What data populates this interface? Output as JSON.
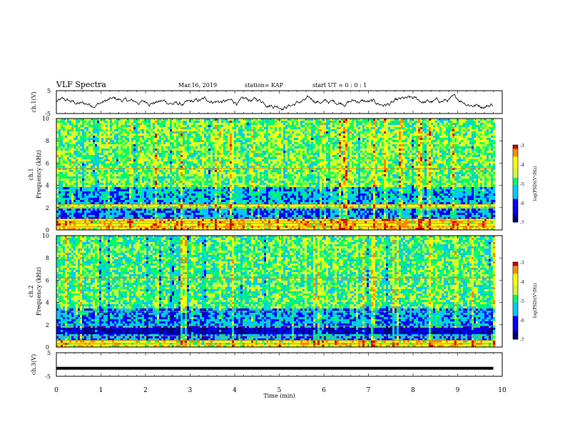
{
  "header": {
    "title": "VLF Spectra",
    "date": "Mar.16, 2019",
    "station": "station= KAP",
    "start": "start  UT =  0 : 0 : 1"
  },
  "labels": {
    "ch1_timeseries_y": "ch.1(V)",
    "ch2_timeseries_y": "ch.3(V)",
    "spec1_y_top": "ch.1",
    "spec1_y_bottom": "Frequency (kHz)",
    "spec2_y_top": "ch.2",
    "spec2_y_bottom": "Frequency (kHz)",
    "xlabel": "Time (min)",
    "colorbar_label": "log(PSD)(V²/Hz)"
  },
  "chart_data": [
    {
      "type": "line",
      "name_key": "ch.1(V)",
      "ylim": [
        -5,
        5
      ],
      "yticks": [
        "5",
        "-5"
      ],
      "xlim": [
        0,
        10
      ],
      "description_values": {
        "baseline_V": 0,
        "amplitude_V": 2
      }
    },
    {
      "type": "heatmap",
      "ylabel": "Frequency (kHz)",
      "channel": "ch.1",
      "ylim": [
        0,
        10
      ],
      "yticks": [
        "0",
        "2",
        "4",
        "6",
        "8",
        "10"
      ],
      "xlim": [
        0,
        9.8
      ],
      "colorscale": {
        "min": -7,
        "max": -3,
        "ticks": [
          "-3",
          "-4",
          "-5",
          "-6",
          "-7"
        ]
      },
      "bands": [
        {
          "f_from": 0.0,
          "f_to": 1.0,
          "level": -3.8
        },
        {
          "f_from": 1.0,
          "f_to": 2.0,
          "level": -5.6
        },
        {
          "f_from": 2.0,
          "f_to": 2.4,
          "level": -4.2
        },
        {
          "f_from": 2.4,
          "f_to": 4.0,
          "level": -5.4
        },
        {
          "f_from": 4.0,
          "f_to": 10.0,
          "level": -4.6
        }
      ],
      "lines_khz": [
        0.3,
        0.6,
        0.8,
        1.0,
        2.0,
        2.3,
        5.5
      ]
    },
    {
      "type": "heatmap",
      "ylabel": "Frequency (kHz)",
      "channel": "ch.2",
      "ylim": [
        0,
        10
      ],
      "yticks": [
        "0",
        "2",
        "4",
        "6",
        "8",
        "10"
      ],
      "xlim": [
        0,
        9.8
      ],
      "colorscale": {
        "min": -7,
        "max": -3,
        "ticks": [
          "-3",
          "-4",
          "-5",
          "-6",
          "-7"
        ]
      },
      "bands": [
        {
          "f_from": 0.0,
          "f_to": 0.7,
          "level": -4.0
        },
        {
          "f_from": 0.7,
          "f_to": 1.2,
          "level": -5.6
        },
        {
          "f_from": 1.2,
          "f_to": 1.9,
          "level": -6.5
        },
        {
          "f_from": 1.9,
          "f_to": 3.5,
          "level": -5.6
        },
        {
          "f_from": 3.5,
          "f_to": 10.0,
          "level": -4.8
        }
      ],
      "lines_khz": [
        0.3,
        0.6,
        1.0,
        1.9,
        3.2,
        6.2
      ]
    },
    {
      "type": "line",
      "name_key": "ch.3(V)",
      "ylim": [
        -5,
        5
      ],
      "yticks": [
        "5",
        "-5"
      ],
      "xlim": [
        0,
        10
      ],
      "x": [
        0,
        9.8
      ],
      "y": [
        -1.6,
        -1.6
      ]
    }
  ],
  "xaxis": {
    "ticks": [
      "0",
      "1",
      "2",
      "3",
      "4",
      "5",
      "6",
      "7",
      "8",
      "9",
      "10"
    ]
  },
  "colors": {
    "cmap": [
      "#00007f",
      "#0000ff",
      "#00c8ff",
      "#00ff66",
      "#ccff33",
      "#ffff00",
      "#ff8c00",
      "#cc0000",
      "#ffffff"
    ]
  }
}
